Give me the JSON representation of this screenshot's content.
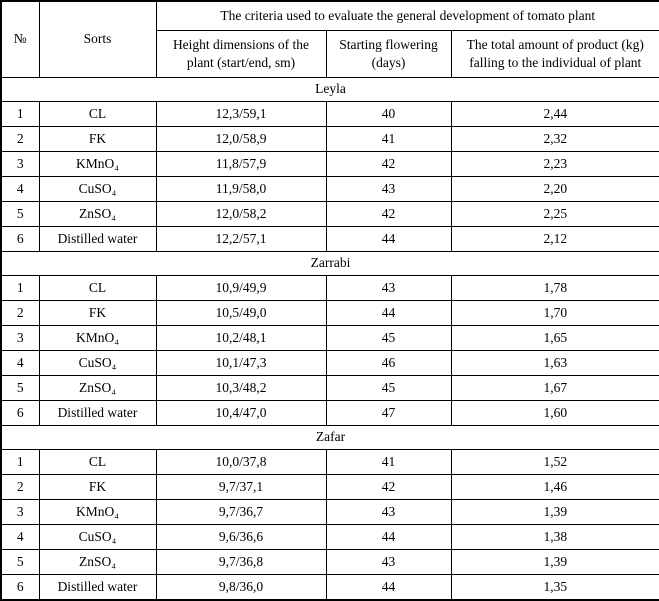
{
  "table": {
    "columns": {
      "no": "№",
      "sorts": "Sorts",
      "criteria_group": "The criteria used to evaluate the general development of tomato plant",
      "height": "Height dimensions of the plant (start/end, sm)",
      "flowering": "Starting flowering (days)",
      "product": "The total amount of product (kg) falling to the individual of plant"
    },
    "colors": {
      "border": "#000000",
      "text": "#000000",
      "background": "#ffffff"
    },
    "sections": [
      {
        "name": "Leyla",
        "rows": [
          {
            "no": "1",
            "sort": "CL",
            "height": "12,3/59,1",
            "flowering": "40",
            "product": "2,44"
          },
          {
            "no": "2",
            "sort": "FK",
            "height": "12,0/58,9",
            "flowering": "41",
            "product": "2,32"
          },
          {
            "no": "3",
            "sort": "KMnO₄",
            "height": "11,8/57,9",
            "flowering": "42",
            "product": "2,23"
          },
          {
            "no": "4",
            "sort": "CuSO₄",
            "height": "11,9/58,0",
            "flowering": "43",
            "product": "2,20"
          },
          {
            "no": "5",
            "sort": "ZnSO₄",
            "height": "12,0/58,2",
            "flowering": "42",
            "product": "2,25"
          },
          {
            "no": "6",
            "sort": "Distilled water",
            "height": "12,2/57,1",
            "flowering": "44",
            "product": "2,12"
          }
        ]
      },
      {
        "name": "Zarrabi",
        "rows": [
          {
            "no": "1",
            "sort": "CL",
            "height": "10,9/49,9",
            "flowering": "43",
            "product": "1,78"
          },
          {
            "no": "2",
            "sort": "FK",
            "height": "10,5/49,0",
            "flowering": "44",
            "product": "1,70"
          },
          {
            "no": "3",
            "sort": "KMnO₄",
            "height": "10,2/48,1",
            "flowering": "45",
            "product": "1,65"
          },
          {
            "no": "4",
            "sort": "CuSO₄",
            "height": "10,1/47,3",
            "flowering": "46",
            "product": "1,63"
          },
          {
            "no": "5",
            "sort": "ZnSO₄",
            "height": "10,3/48,2",
            "flowering": "45",
            "product": "1,67"
          },
          {
            "no": "6",
            "sort": "Distilled water",
            "height": "10,4/47,0",
            "flowering": "47",
            "product": "1,60"
          }
        ]
      },
      {
        "name": "Zafar",
        "rows": [
          {
            "no": "1",
            "sort": "CL",
            "height": "10,0/37,8",
            "flowering": "41",
            "product": "1,52"
          },
          {
            "no": "2",
            "sort": "FK",
            "height": "9,7/37,1",
            "flowering": "42",
            "product": "1,46"
          },
          {
            "no": "3",
            "sort": "KMnO₄",
            "height": "9,7/36,7",
            "flowering": "43",
            "product": "1,39"
          },
          {
            "no": "4",
            "sort": "CuSO₄",
            "height": "9,6/36,6",
            "flowering": "44",
            "product": "1,38"
          },
          {
            "no": "5",
            "sort": "ZnSO₄",
            "height": "9,7/36,8",
            "flowering": "43",
            "product": "1,39"
          },
          {
            "no": "6",
            "sort": "Distilled water",
            "height": "9,8/36,0",
            "flowering": "44",
            "product": "1,35"
          }
        ]
      }
    ]
  }
}
